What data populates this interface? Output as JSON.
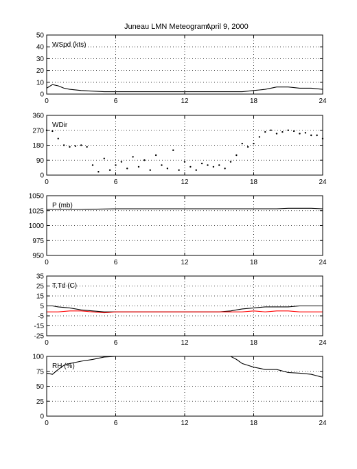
{
  "figure": {
    "title_place": "Juneau LMN Meteogram:",
    "title_date": "April  9, 2000"
  },
  "chart_data": [
    {
      "type": "line",
      "panel_label": "WSpd (kts)",
      "xlim": [
        0,
        24
      ],
      "ylim": [
        0,
        50
      ],
      "x_ticks": [
        "0",
        "6",
        "12",
        "18",
        "24"
      ],
      "y_ticks": [
        "0",
        "10",
        "20",
        "30",
        "40",
        "50"
      ],
      "grid": true,
      "plot_style": "line",
      "series": [
        {
          "color": "#000000",
          "x": [
            0,
            0.5,
            1,
            1.5,
            2,
            3,
            4,
            5,
            6,
            7,
            8,
            9,
            10,
            11,
            12,
            13,
            14,
            15,
            16,
            17,
            17.5,
            18,
            18.5,
            19,
            19.5,
            20,
            21,
            22,
            23,
            24
          ],
          "y": [
            5,
            8,
            7,
            5,
            4,
            3,
            2.5,
            2,
            2,
            2,
            2,
            2,
            2,
            2,
            2,
            2,
            2,
            2,
            2,
            2,
            2.5,
            3,
            3.5,
            4,
            5,
            6,
            6,
            5,
            5,
            4
          ]
        }
      ]
    },
    {
      "type": "scatter",
      "panel_label": "WDir",
      "xlim": [
        0,
        24
      ],
      "ylim": [
        0,
        360
      ],
      "x_ticks": [
        "0",
        "6",
        "12",
        "18",
        "24"
      ],
      "y_ticks": [
        "0",
        "90",
        "180",
        "270",
        "360"
      ],
      "grid": true,
      "plot_style": "dots",
      "series": [
        {
          "color": "#000000",
          "x": [
            0,
            0.5,
            1,
            1.5,
            2,
            2.5,
            3,
            3.5,
            4,
            4.5,
            5,
            5.5,
            6,
            6.5,
            7,
            7.5,
            8,
            8.5,
            9,
            9.5,
            10,
            10.5,
            11,
            11.5,
            12,
            12.5,
            13,
            13.5,
            14,
            14.5,
            15,
            15.5,
            16,
            16.5,
            17,
            17.5,
            18,
            18.5,
            19,
            19.5,
            20,
            20.5,
            21,
            21.5,
            22,
            22.5,
            23,
            23.5,
            24
          ],
          "y": [
            270,
            265,
            220,
            180,
            170,
            175,
            180,
            170,
            60,
            20,
            100,
            30,
            60,
            80,
            40,
            110,
            50,
            90,
            30,
            120,
            60,
            40,
            150,
            30,
            80,
            50,
            30,
            70,
            60,
            50,
            60,
            40,
            80,
            120,
            190,
            170,
            190,
            230,
            260,
            270,
            250,
            260,
            270,
            265,
            250,
            255,
            240,
            240,
            220
          ]
        }
      ]
    },
    {
      "type": "line",
      "panel_label": "P (mb)",
      "xlim": [
        0,
        24
      ],
      "ylim": [
        950,
        1050
      ],
      "x_ticks": [
        "0",
        "6",
        "12",
        "18",
        "24"
      ],
      "y_ticks": [
        "950",
        "975",
        "1000",
        "1025",
        "1050"
      ],
      "grid": true,
      "plot_style": "line",
      "series": [
        {
          "color": "#000000",
          "x": [
            0,
            3,
            6,
            9,
            12,
            15,
            18,
            20,
            21,
            22,
            23,
            24
          ],
          "y": [
            1027,
            1027,
            1028,
            1028,
            1028,
            1028,
            1028,
            1028,
            1029,
            1029,
            1029,
            1028
          ]
        }
      ]
    },
    {
      "type": "line",
      "panel_label": "T,Td (C)",
      "xlim": [
        0,
        24
      ],
      "ylim": [
        -25,
        35
      ],
      "x_ticks": [
        "0",
        "6",
        "12",
        "18",
        "24"
      ],
      "y_ticks": [
        "-25",
        "-15",
        "-5",
        "5",
        "15",
        "25",
        "35"
      ],
      "grid": true,
      "plot_style": "line",
      "series": [
        {
          "color": "#000000",
          "x": [
            0,
            0.5,
            1,
            2,
            3,
            4,
            5,
            6,
            7,
            8,
            9,
            10,
            11,
            12,
            13,
            14,
            15,
            16,
            16.5,
            17,
            18,
            19,
            20,
            21,
            22,
            23,
            24
          ],
          "y": [
            5,
            5,
            4,
            3,
            1,
            0,
            -1,
            -1,
            -1,
            -1,
            -1,
            -1,
            -1,
            -1,
            -1,
            -1,
            -1,
            0,
            1,
            2,
            3,
            4,
            4,
            4,
            5,
            5,
            5
          ]
        },
        {
          "color": "#ff0000",
          "x": [
            0,
            1,
            2,
            3,
            4,
            5,
            6,
            7,
            8,
            9,
            10,
            11,
            12,
            13,
            14,
            15,
            16,
            17,
            18,
            19,
            20,
            21,
            22,
            23,
            24
          ],
          "y": [
            -1,
            -1,
            0,
            0,
            -1,
            -2,
            -1,
            -1,
            -1,
            -1,
            -1,
            -1,
            -1,
            -1,
            -1,
            -1,
            -1,
            -1,
            0,
            -1,
            0,
            0,
            -1,
            -1,
            -1
          ]
        }
      ]
    },
    {
      "type": "line",
      "panel_label": "RH (%)",
      "xlim": [
        0,
        24
      ],
      "ylim": [
        0,
        100
      ],
      "x_ticks": [
        "0",
        "6",
        "12",
        "18",
        "24"
      ],
      "y_ticks": [
        "0",
        "25",
        "50",
        "75",
        "100"
      ],
      "grid": true,
      "plot_style": "line",
      "series": [
        {
          "color": "#000000",
          "x": [
            0,
            0.5,
            1,
            1.5,
            2,
            3,
            4,
            5,
            6,
            7,
            8,
            9,
            10,
            11,
            12,
            13,
            14,
            15,
            16,
            16.5,
            17,
            17.5,
            18,
            19,
            20,
            21,
            22,
            23,
            24
          ],
          "y": [
            72,
            70,
            78,
            85,
            88,
            92,
            95,
            99,
            100,
            100,
            100,
            100,
            100,
            100,
            100,
            100,
            100,
            100,
            100,
            95,
            88,
            85,
            82,
            78,
            78,
            73,
            72,
            70,
            65
          ]
        }
      ]
    }
  ]
}
